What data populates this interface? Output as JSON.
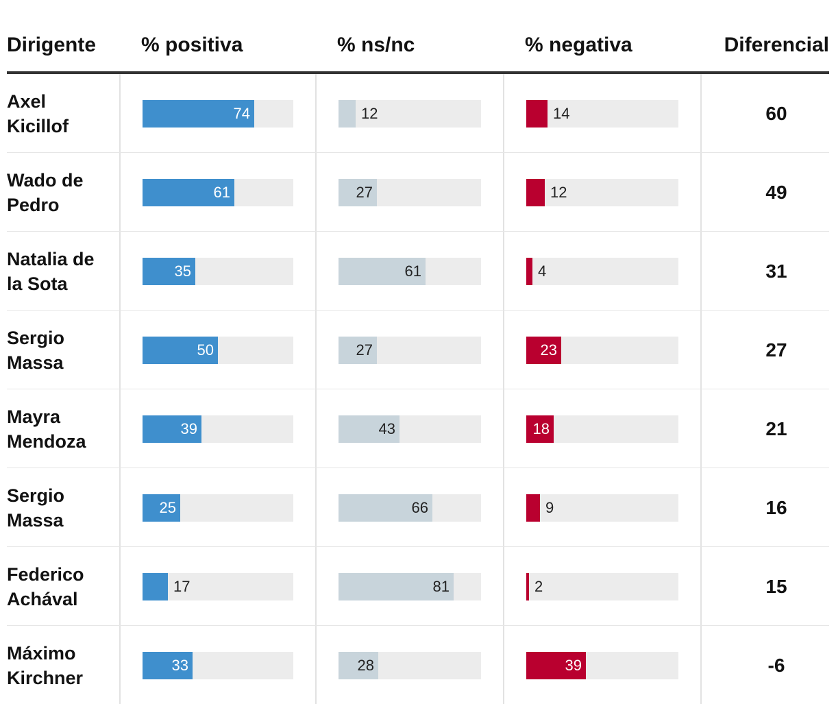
{
  "colors": {
    "positive": "#3f8fcd",
    "nsnc": "#c8d4db",
    "negative": "#b9002f",
    "track": "#ececec"
  },
  "chart_data": {
    "type": "table",
    "columns": [
      "Dirigente",
      "% positiva",
      "% ns/nc",
      "% negativa",
      "Diferencial"
    ],
    "scale_max": 100,
    "rows": [
      {
        "name": "Axel Kicillof",
        "positive": 74,
        "nsnc": 12,
        "negative": 14,
        "diff": "60"
      },
      {
        "name": "Wado de Pedro",
        "positive": 61,
        "nsnc": 27,
        "negative": 12,
        "diff": "49"
      },
      {
        "name": "Natalia de la Sota",
        "positive": 35,
        "nsnc": 61,
        "negative": 4,
        "diff": "31"
      },
      {
        "name": "Sergio Massa",
        "positive": 50,
        "nsnc": 27,
        "negative": 23,
        "diff": "27"
      },
      {
        "name": "Mayra Mendoza",
        "positive": 39,
        "nsnc": 43,
        "negative": 18,
        "diff": "21"
      },
      {
        "name": "Sergio Massa",
        "positive": 25,
        "nsnc": 66,
        "negative": 9,
        "diff": "16"
      },
      {
        "name": "Federico Achával",
        "positive": 17,
        "nsnc": 81,
        "negative": 2,
        "diff": "15"
      },
      {
        "name": "Máximo Kirchner",
        "positive": 33,
        "nsnc": 28,
        "negative": 39,
        "diff": "-6"
      }
    ]
  }
}
